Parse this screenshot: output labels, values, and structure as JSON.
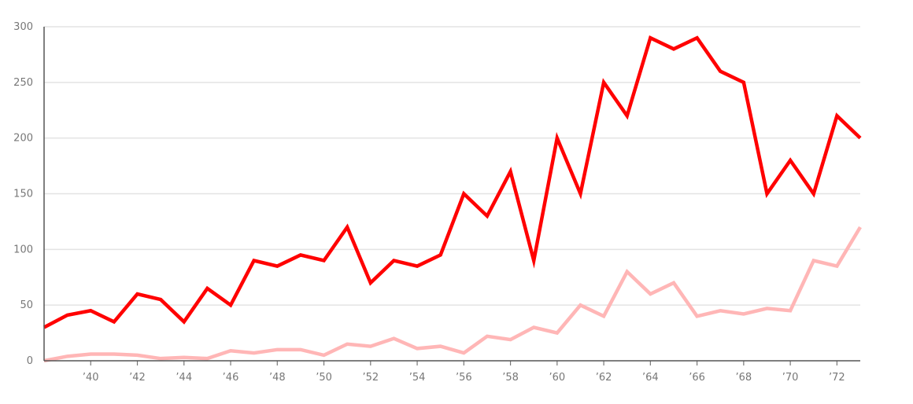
{
  "chart_data": {
    "type": "line",
    "title": "",
    "xlabel": "",
    "ylabel": "",
    "x": [
      1938,
      1939,
      1940,
      1941,
      1942,
      1943,
      1944,
      1945,
      1946,
      1947,
      1948,
      1949,
      1950,
      1951,
      1952,
      1953,
      1954,
      1955,
      1956,
      1957,
      1958,
      1959,
      1960,
      1961,
      1962,
      1963,
      1964,
      1965,
      1966,
      1967,
      1968,
      1969,
      1970,
      1971,
      1972,
      1973
    ],
    "xlim": [
      1938,
      1973
    ],
    "ylim": [
      0,
      300
    ],
    "y_ticks": [
      0,
      50,
      100,
      150,
      200,
      250,
      300
    ],
    "y_tick_labels": [
      "0",
      "50",
      "100",
      "150",
      "200",
      "250",
      "300"
    ],
    "x_ticks": [
      1940,
      1942,
      1944,
      1946,
      1948,
      1950,
      1952,
      1954,
      1956,
      1958,
      1960,
      1962,
      1964,
      1966,
      1968,
      1970,
      1972
    ],
    "x_tick_labels": [
      "’40",
      "’42",
      "’44",
      "’46",
      "’48",
      "’50",
      "’52",
      "’54",
      "’56",
      "’58",
      "’60",
      "’62",
      "’64",
      "’66",
      "’68",
      "’70",
      "’72"
    ],
    "grid": "horizontal",
    "legend": "none",
    "series": [
      {
        "color": "#ff0000",
        "values": [
          30,
          41,
          45,
          35,
          60,
          55,
          35,
          65,
          50,
          90,
          85,
          95,
          90,
          120,
          70,
          90,
          85,
          95,
          150,
          130,
          170,
          90,
          200,
          150,
          250,
          220,
          290,
          280,
          290,
          260,
          250,
          150,
          180,
          150,
          220,
          200
        ]
      },
      {
        "color": "#ffb6b6",
        "values": [
          0,
          4,
          6,
          6,
          5,
          2,
          3,
          2,
          9,
          7,
          10,
          10,
          5,
          15,
          13,
          20,
          11,
          13,
          7,
          22,
          19,
          30,
          25,
          50,
          40,
          80,
          60,
          70,
          40,
          45,
          42,
          47,
          45,
          90,
          85,
          120
        ]
      }
    ]
  }
}
